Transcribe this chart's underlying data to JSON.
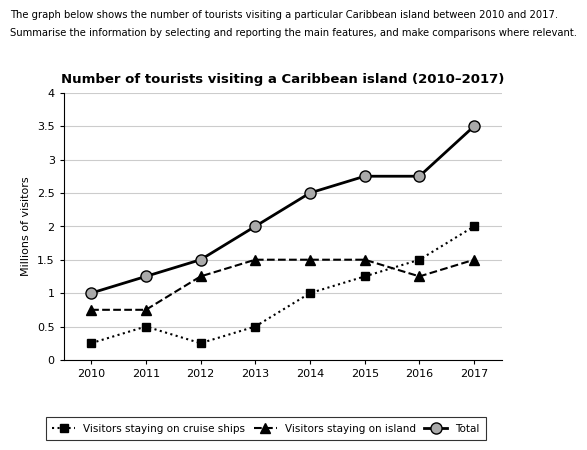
{
  "title": "Number of tourists visiting a Caribbean island (2010–2017)",
  "header_line1": "The graph below shows the number of tourists visiting a particular Caribbean island between 2010 and 2017.",
  "header_line2": "Summarise the information by selecting and reporting the main features, and make comparisons where relevant.",
  "ylabel": "Millions of visitors",
  "years": [
    2010,
    2011,
    2012,
    2013,
    2014,
    2015,
    2016,
    2017
  ],
  "cruise_ships": [
    0.25,
    0.5,
    0.25,
    0.5,
    1.0,
    1.25,
    1.5,
    2.0
  ],
  "on_island": [
    0.75,
    0.75,
    1.25,
    1.5,
    1.5,
    1.5,
    1.25,
    1.5
  ],
  "total": [
    1.0,
    1.25,
    1.5,
    2.0,
    2.5,
    2.75,
    2.75,
    3.5
  ],
  "ylim": [
    0,
    4
  ],
  "yticks": [
    0,
    0.5,
    1.0,
    1.5,
    2.0,
    2.5,
    3.0,
    3.5,
    4.0
  ],
  "background_color": "#ffffff",
  "grid_color": "#cccccc",
  "legend_labels": [
    "Visitors staying on cruise ships",
    "Visitors staying on island",
    "Total"
  ]
}
